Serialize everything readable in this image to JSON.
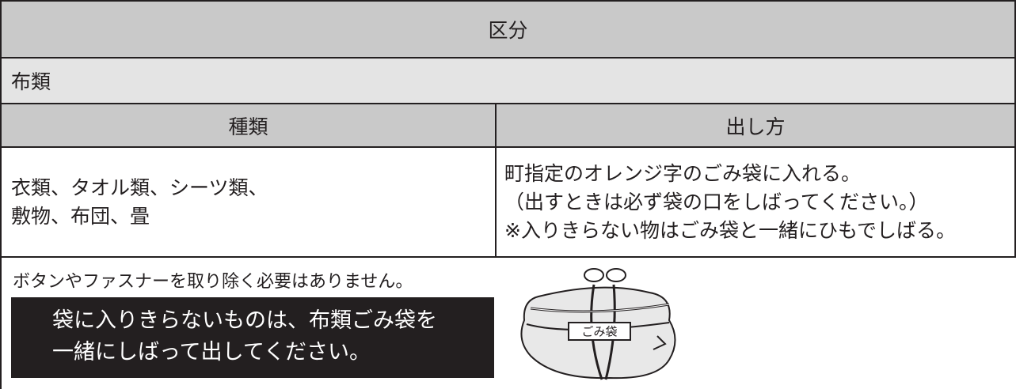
{
  "header": {
    "title": "区分"
  },
  "category": "布類",
  "table": {
    "columns": [
      "種類",
      "出し方"
    ],
    "rows": [
      [
        [
          "衣類、タオル類、シーツ類、",
          "敷物、布団、畳"
        ],
        [
          "町指定のオレンジ字のごみ袋に入れる。",
          "（出すときは必ず袋の口をしばってください。）",
          "※入りきらない物はごみ袋と一緒にひもでしばる。"
        ]
      ]
    ]
  },
  "note": "ボタンやファスナーを取り除く必要はありません。",
  "notice": [
    "袋に入りきらないものは、布類ごみ袋を",
    "一緒にしばって出してください。"
  ],
  "illustration": {
    "label": "ごみ袋"
  }
}
